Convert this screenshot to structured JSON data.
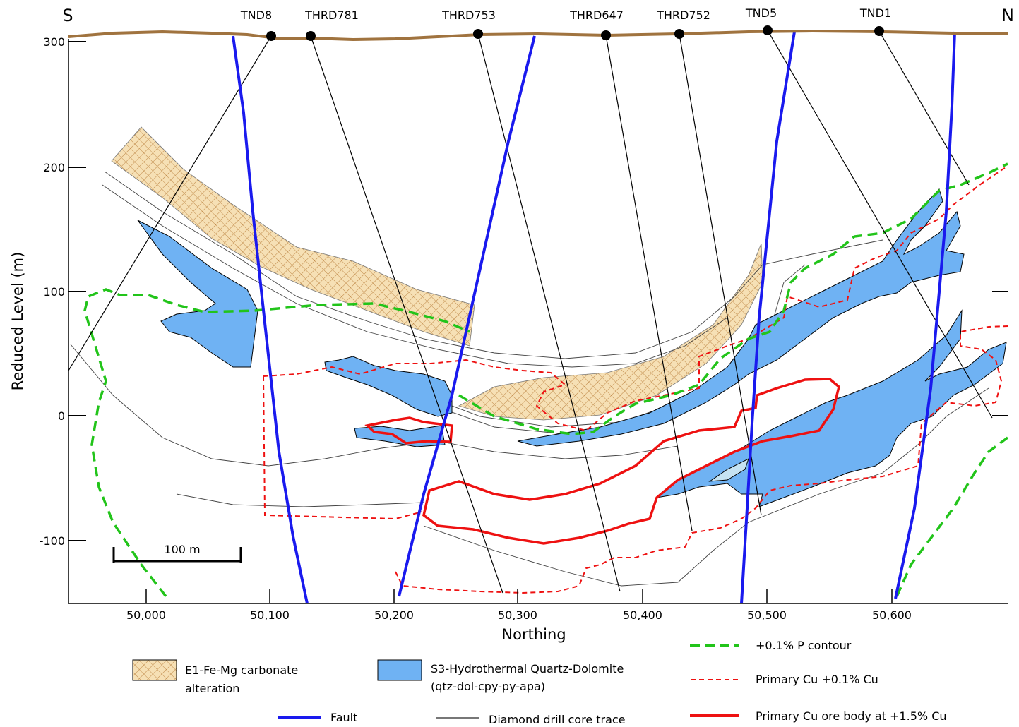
{
  "direction_left": "S",
  "direction_right": "N",
  "drillholes": [
    "TND8",
    "THRD781",
    "THRD753",
    "THRD647",
    "THRD752",
    "TND5",
    "TND1"
  ],
  "y_axis": {
    "label": "Reduced Level (m)",
    "ticks": [
      "300",
      "200",
      "100",
      "0",
      "-100"
    ]
  },
  "x_axis": {
    "label": "Northing",
    "ticks": [
      "50,000",
      "50,100",
      "50,200",
      "50,300",
      "50,400",
      "50,500",
      "50,600"
    ]
  },
  "scale_bar": "100 m",
  "legend": {
    "carbonate": "E1-Fe-Mg carbonate",
    "carbonate_2": "alteration",
    "quartz": "S3-Hydrothermal Quartz-Dolomite",
    "quartz_2": "(qtz-dol-cpy-py-apa)",
    "fault": "Fault",
    "drill": "Diamond drill core trace",
    "p_contour": "+0.1% P contour",
    "cu_low": "Primary Cu +0.1% Cu",
    "cu_high": "Primary Cu ore body at +1.5% Cu"
  },
  "colors": {
    "surface": "#a0733f",
    "fault": "#1a1aee",
    "quartz_fill": "#6fb2f3",
    "cu": "#ee1111",
    "p_contour": "#22c41a",
    "carbonate_fill": "#f5deb3",
    "carbonate_hatch": "#c09050"
  }
}
